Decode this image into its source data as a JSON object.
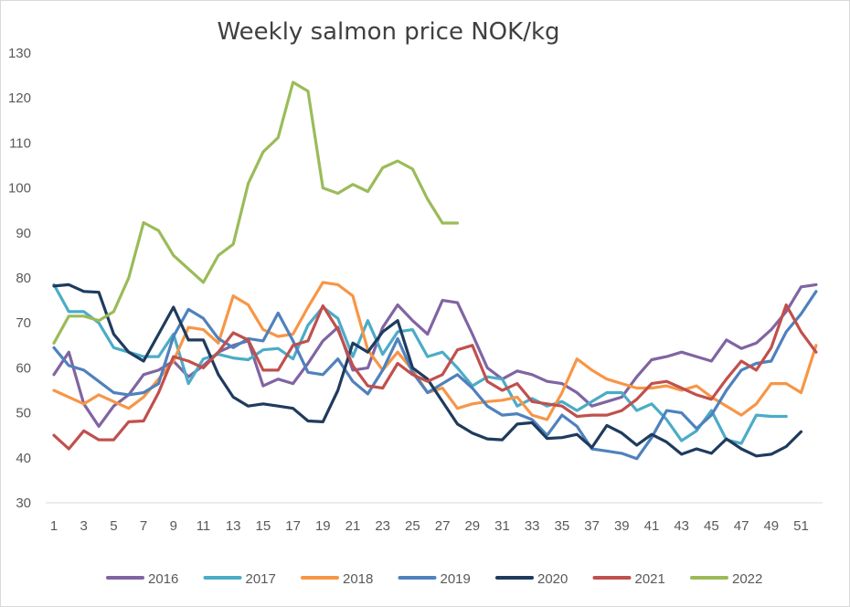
{
  "chart_data": {
    "type": "line",
    "title": "Weekly salmon price NOK/kg",
    "xlabel": "",
    "ylabel": "",
    "xlim": [
      1,
      52
    ],
    "ylim": [
      30,
      130
    ],
    "yticks": [
      30,
      40,
      50,
      60,
      70,
      80,
      90,
      100,
      110,
      120,
      130
    ],
    "xticks": [
      1,
      3,
      5,
      7,
      9,
      11,
      13,
      15,
      17,
      19,
      21,
      23,
      25,
      27,
      29,
      31,
      33,
      35,
      37,
      39,
      41,
      43,
      45,
      47,
      49,
      51
    ],
    "grid": false,
    "legend_position": "bottom",
    "series": [
      {
        "name": "2016",
        "color": "#8064a2",
        "values": [
          58.5,
          63.5,
          52,
          47,
          51.5,
          54,
          58.5,
          59.5,
          61.5,
          58,
          60.5,
          63.5,
          65,
          66,
          56,
          57.5,
          56.5,
          61,
          66,
          69,
          59.5,
          60,
          69,
          74,
          70.5,
          67.5,
          75,
          74.5,
          67.5,
          60,
          57.5,
          59.3,
          58.5,
          57,
          56.5,
          54.5,
          51.5,
          52.5,
          53.5,
          58,
          61.8,
          62.5,
          63.5,
          62.5,
          61.5,
          66.2,
          64.3,
          65.5,
          68.5,
          72.5,
          78,
          78.5
        ]
      },
      {
        "name": "2017",
        "color": "#4bacc6",
        "values": [
          78.5,
          72.5,
          72.5,
          70,
          64.5,
          63.5,
          62.5,
          62.5,
          67.5,
          56.5,
          62,
          63,
          62.2,
          61.8,
          64,
          64.3,
          62,
          69.5,
          73.5,
          71,
          62.5,
          70.5,
          63,
          68,
          68.5,
          62.5,
          63.5,
          60,
          56,
          58,
          57.5,
          51.5,
          53.2,
          51.5,
          52.5,
          50.5,
          52.5,
          54.5,
          54.5,
          50.5,
          52,
          48.5,
          43.8,
          46,
          50.5,
          44,
          43.2,
          49.5,
          49.2,
          49.2
        ]
      },
      {
        "name": "2018",
        "color": "#f79646",
        "values": [
          55,
          53.5,
          52,
          54,
          52.5,
          51,
          53.5,
          57.5,
          61.5,
          69,
          68.5,
          65.5,
          76,
          74,
          68.5,
          67,
          67.5,
          73.5,
          79,
          78.5,
          76,
          64,
          59.5,
          63.5,
          59.5,
          54.5,
          55.5,
          51,
          52,
          52.5,
          52.8,
          53.5,
          49.5,
          48.5,
          54.5,
          62,
          59.5,
          57.5,
          56.5,
          55.5,
          55.5,
          56,
          55,
          56,
          53.5,
          51.5,
          49.5,
          52,
          56.5,
          56.5,
          54.5,
          65
        ]
      },
      {
        "name": "2019",
        "color": "#4f81bd",
        "values": [
          64.5,
          60.5,
          59.5,
          57,
          54.5,
          54,
          54.5,
          56.5,
          67,
          73,
          71,
          66.5,
          64.5,
          66.5,
          66,
          72.2,
          66,
          59,
          58.5,
          62,
          57,
          54.2,
          59.5,
          66.5,
          59,
          54.5,
          56.5,
          58.5,
          55.5,
          51.5,
          49.5,
          49.8,
          48.5,
          45,
          49.5,
          47,
          42,
          41.5,
          41,
          39.8,
          44.5,
          50.5,
          50,
          46.5,
          49.5,
          55,
          59.5,
          61,
          61.5,
          68,
          72,
          77
        ]
      },
      {
        "name": "2020",
        "color": "#1f3b5e",
        "values": [
          78.2,
          78.5,
          77,
          76.8,
          67.5,
          63.5,
          61.5,
          67.5,
          73.5,
          66.2,
          66.2,
          58.5,
          53.5,
          51.5,
          52,
          51.5,
          51,
          48.2,
          48,
          55,
          65.5,
          63.5,
          68,
          70.5,
          60,
          57.5,
          52.5,
          47.5,
          45.5,
          44.2,
          44,
          47.5,
          47.8,
          44.3,
          44.5,
          45.2,
          42.3,
          47.2,
          45.5,
          42.8,
          45.2,
          43.5,
          40.8,
          42,
          41,
          44.2,
          42,
          40.4,
          40.8,
          42.5,
          45.8
        ]
      },
      {
        "name": "2021",
        "color": "#c0504d",
        "values": [
          45,
          42,
          46,
          44,
          44,
          48,
          48.2,
          54.5,
          62.5,
          61.5,
          60,
          63.5,
          67.8,
          66.2,
          59.5,
          59.5,
          65,
          66,
          73.8,
          68.5,
          60.5,
          56,
          55.5,
          61,
          58.5,
          57,
          58.5,
          64,
          65,
          57,
          55,
          56.5,
          52.5,
          52,
          51.5,
          49.2,
          49.5,
          49.5,
          50.5,
          53,
          56.5,
          57,
          55.5,
          54,
          53,
          57.5,
          61.5,
          59.5,
          64.5,
          74,
          68,
          63.5
        ]
      },
      {
        "name": "2022",
        "color": "#9bbb59",
        "values": [
          65.5,
          71.5,
          71.5,
          70.5,
          72.5,
          80,
          92.3,
          90.5,
          85,
          82,
          79,
          85,
          87.5,
          101,
          108,
          111.2,
          123.5,
          121.5,
          100,
          98.8,
          100.8,
          99.2,
          104.5,
          106,
          104.2,
          97.5,
          92.2,
          92.2
        ]
      }
    ]
  }
}
